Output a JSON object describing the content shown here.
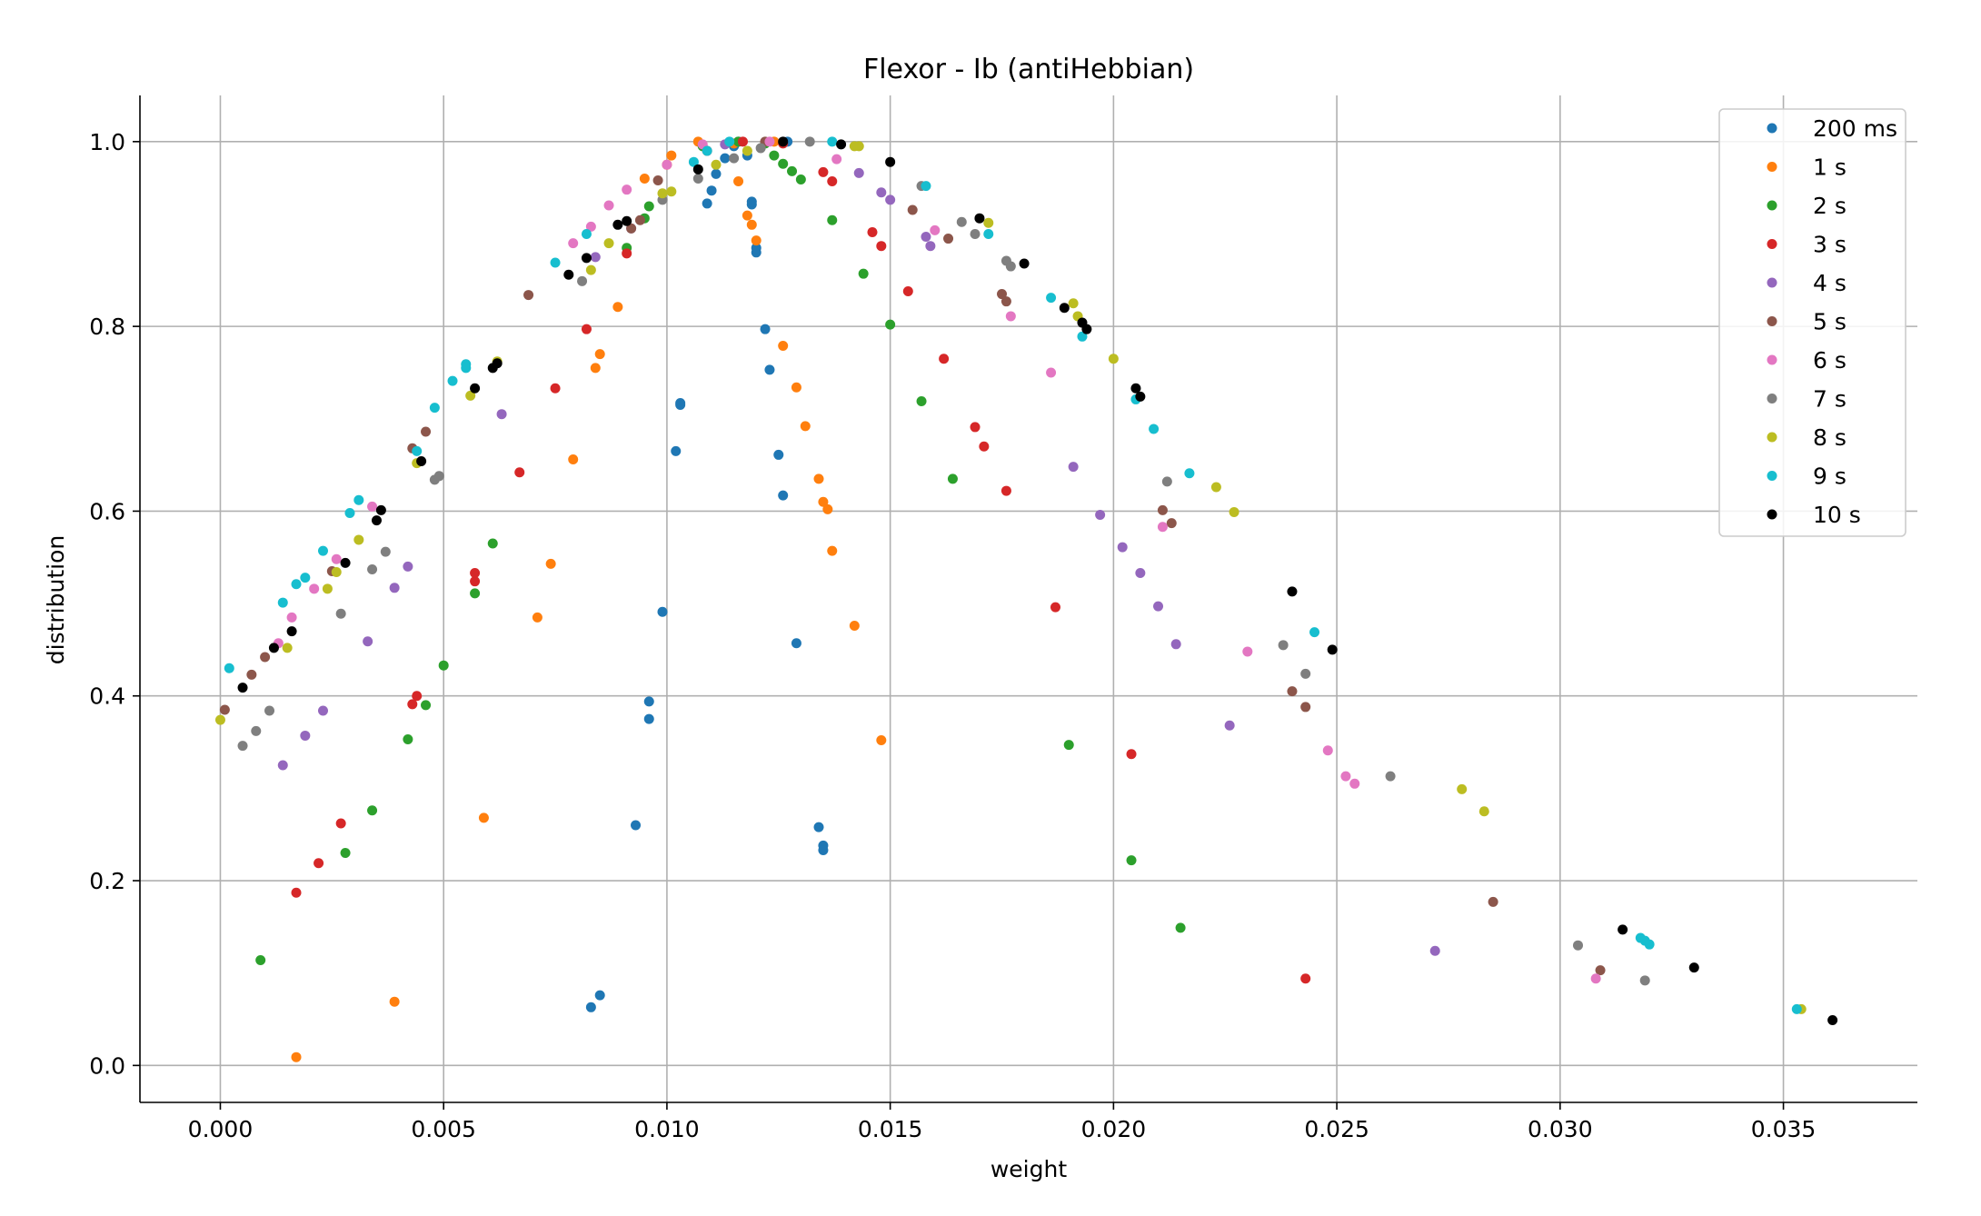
{
  "chart_data": {
    "type": "scatter",
    "title": "Flexor - Ib (antiHebbian)",
    "xlabel": "weight",
    "ylabel": "distribution",
    "xlim": [
      -0.0018,
      0.038
    ],
    "ylim": [
      -0.04,
      1.05
    ],
    "xticks": [
      0.0,
      0.005,
      0.01,
      0.015,
      0.02,
      0.025,
      0.03,
      0.035
    ],
    "xtick_labels": [
      "0.000",
      "0.005",
      "0.010",
      "0.015",
      "0.020",
      "0.025",
      "0.030",
      "0.035"
    ],
    "yticks": [
      0.0,
      0.2,
      0.4,
      0.6,
      0.8,
      1.0
    ],
    "ytick_labels": [
      "0.0",
      "0.2",
      "0.4",
      "0.6",
      "0.8",
      "1.0"
    ],
    "grid": true,
    "legend_position": "top-right",
    "series": [
      {
        "name": "200 ms",
        "color": "#1f77b4",
        "points": [
          [
            0.0083,
            0.063
          ],
          [
            0.0085,
            0.076
          ],
          [
            0.0093,
            0.26
          ],
          [
            0.0096,
            0.375
          ],
          [
            0.0096,
            0.394
          ],
          [
            0.0099,
            0.491
          ],
          [
            0.0102,
            0.665
          ],
          [
            0.0103,
            0.715
          ],
          [
            0.0103,
            0.717
          ],
          [
            0.0109,
            0.933
          ],
          [
            0.011,
            0.947
          ],
          [
            0.0111,
            0.965
          ],
          [
            0.0113,
            0.982
          ],
          [
            0.0115,
            0.995
          ],
          [
            0.0116,
            1.0
          ],
          [
            0.0119,
            0.932
          ],
          [
            0.0119,
            0.935
          ],
          [
            0.012,
            0.88
          ],
          [
            0.012,
            0.885
          ],
          [
            0.0122,
            0.797
          ],
          [
            0.0123,
            0.753
          ],
          [
            0.0125,
            0.661
          ],
          [
            0.0126,
            0.617
          ],
          [
            0.0129,
            0.457
          ],
          [
            0.0134,
            0.258
          ],
          [
            0.0135,
            0.238
          ],
          [
            0.0135,
            0.233
          ],
          [
            0.0118,
            0.985
          ],
          [
            0.0127,
            1.0
          ]
        ]
      },
      {
        "name": "1 s",
        "color": "#ff7f0e",
        "points": [
          [
            0.0017,
            0.009
          ],
          [
            0.0039,
            0.069
          ],
          [
            0.0059,
            0.268
          ],
          [
            0.0071,
            0.485
          ],
          [
            0.0074,
            0.543
          ],
          [
            0.0079,
            0.656
          ],
          [
            0.0084,
            0.755
          ],
          [
            0.0085,
            0.77
          ],
          [
            0.0089,
            0.821
          ],
          [
            0.0095,
            0.96
          ],
          [
            0.01,
            0.975
          ],
          [
            0.0101,
            0.985
          ],
          [
            0.0107,
            1.0
          ],
          [
            0.0116,
            0.957
          ],
          [
            0.0118,
            0.92
          ],
          [
            0.0119,
            0.91
          ],
          [
            0.012,
            0.893
          ],
          [
            0.0126,
            0.779
          ],
          [
            0.0129,
            0.734
          ],
          [
            0.0131,
            0.692
          ],
          [
            0.0134,
            0.635
          ],
          [
            0.0135,
            0.61
          ],
          [
            0.0136,
            0.602
          ],
          [
            0.0137,
            0.557
          ],
          [
            0.0142,
            0.476
          ],
          [
            0.0148,
            0.352
          ],
          [
            0.0115,
            0.998
          ],
          [
            0.0124,
            1.0
          ]
        ]
      },
      {
        "name": "2 s",
        "color": "#2ca02c",
        "points": [
          [
            0.0009,
            0.114
          ],
          [
            0.0028,
            0.23
          ],
          [
            0.0034,
            0.276
          ],
          [
            0.0042,
            0.353
          ],
          [
            0.0046,
            0.39
          ],
          [
            0.005,
            0.433
          ],
          [
            0.0057,
            0.511
          ],
          [
            0.0061,
            0.565
          ],
          [
            0.0091,
            0.885
          ],
          [
            0.0095,
            0.917
          ],
          [
            0.0096,
            0.93
          ],
          [
            0.0108,
            0.995
          ],
          [
            0.0124,
            0.985
          ],
          [
            0.0126,
            0.976
          ],
          [
            0.0128,
            0.968
          ],
          [
            0.013,
            0.959
          ],
          [
            0.0137,
            0.915
          ],
          [
            0.0144,
            0.857
          ],
          [
            0.015,
            0.802
          ],
          [
            0.0157,
            0.719
          ],
          [
            0.0164,
            0.635
          ],
          [
            0.019,
            0.347
          ],
          [
            0.0204,
            0.222
          ],
          [
            0.0215,
            0.149
          ],
          [
            0.0116,
            1.0
          ],
          [
            0.0122,
            0.998
          ]
        ]
      },
      {
        "name": "3 s",
        "color": "#d62728",
        "points": [
          [
            0.0017,
            0.187
          ],
          [
            0.0022,
            0.219
          ],
          [
            0.0027,
            0.262
          ],
          [
            0.0043,
            0.391
          ],
          [
            0.0044,
            0.4
          ],
          [
            0.0057,
            0.524
          ],
          [
            0.0057,
            0.533
          ],
          [
            0.0067,
            0.642
          ],
          [
            0.0075,
            0.733
          ],
          [
            0.0082,
            0.797
          ],
          [
            0.0091,
            0.879
          ],
          [
            0.0109,
            0.99
          ],
          [
            0.0117,
            1.0
          ],
          [
            0.0135,
            0.967
          ],
          [
            0.0137,
            0.957
          ],
          [
            0.0146,
            0.902
          ],
          [
            0.0148,
            0.887
          ],
          [
            0.0154,
            0.838
          ],
          [
            0.0162,
            0.765
          ],
          [
            0.0169,
            0.691
          ],
          [
            0.0171,
            0.67
          ],
          [
            0.0176,
            0.622
          ],
          [
            0.0187,
            0.496
          ],
          [
            0.0204,
            0.337
          ],
          [
            0.0243,
            0.094
          ],
          [
            0.0126,
            0.998
          ]
        ]
      },
      {
        "name": "4 s",
        "color": "#9467bd",
        "points": [
          [
            0.0014,
            0.325
          ],
          [
            0.0019,
            0.357
          ],
          [
            0.0023,
            0.384
          ],
          [
            0.0033,
            0.459
          ],
          [
            0.0039,
            0.517
          ],
          [
            0.0042,
            0.54
          ],
          [
            0.0063,
            0.705
          ],
          [
            0.0084,
            0.875
          ],
          [
            0.0092,
            0.906
          ],
          [
            0.0143,
            0.966
          ],
          [
            0.0148,
            0.945
          ],
          [
            0.015,
            0.937
          ],
          [
            0.0158,
            0.897
          ],
          [
            0.0159,
            0.887
          ],
          [
            0.0191,
            0.648
          ],
          [
            0.0197,
            0.596
          ],
          [
            0.0202,
            0.561
          ],
          [
            0.0206,
            0.533
          ],
          [
            0.021,
            0.497
          ],
          [
            0.0214,
            0.456
          ],
          [
            0.0226,
            0.368
          ],
          [
            0.0272,
            0.124
          ],
          [
            0.0113,
            0.997
          ]
        ]
      },
      {
        "name": "5 s",
        "color": "#8c564b",
        "points": [
          [
            0.0001,
            0.385
          ],
          [
            0.0007,
            0.423
          ],
          [
            0.001,
            0.442
          ],
          [
            0.0025,
            0.535
          ],
          [
            0.0043,
            0.668
          ],
          [
            0.0046,
            0.686
          ],
          [
            0.0069,
            0.834
          ],
          [
            0.0092,
            0.906
          ],
          [
            0.0094,
            0.915
          ],
          [
            0.0098,
            0.958
          ],
          [
            0.0155,
            0.926
          ],
          [
            0.0163,
            0.895
          ],
          [
            0.0175,
            0.835
          ],
          [
            0.0176,
            0.827
          ],
          [
            0.0211,
            0.601
          ],
          [
            0.0213,
            0.587
          ],
          [
            0.024,
            0.405
          ],
          [
            0.0243,
            0.388
          ],
          [
            0.0285,
            0.177
          ],
          [
            0.0309,
            0.103
          ],
          [
            0.0122,
            1.0
          ]
        ]
      },
      {
        "name": "6 s",
        "color": "#e377c2",
        "points": [
          [
            0.0013,
            0.457
          ],
          [
            0.0016,
            0.485
          ],
          [
            0.0021,
            0.516
          ],
          [
            0.0026,
            0.548
          ],
          [
            0.0034,
            0.605
          ],
          [
            0.0079,
            0.89
          ],
          [
            0.0083,
            0.908
          ],
          [
            0.0087,
            0.931
          ],
          [
            0.0091,
            0.948
          ],
          [
            0.01,
            0.975
          ],
          [
            0.0108,
            0.997
          ],
          [
            0.0138,
            0.981
          ],
          [
            0.016,
            0.904
          ],
          [
            0.0177,
            0.811
          ],
          [
            0.0186,
            0.75
          ],
          [
            0.0211,
            0.583
          ],
          [
            0.023,
            0.448
          ],
          [
            0.0248,
            0.341
          ],
          [
            0.0252,
            0.313
          ],
          [
            0.0254,
            0.305
          ],
          [
            0.0308,
            0.094
          ],
          [
            0.0123,
            1.0
          ]
        ]
      },
      {
        "name": "7 s",
        "color": "#7f7f7f",
        "points": [
          [
            0.0005,
            0.346
          ],
          [
            0.0008,
            0.362
          ],
          [
            0.0011,
            0.384
          ],
          [
            0.0027,
            0.489
          ],
          [
            0.0034,
            0.537
          ],
          [
            0.0037,
            0.556
          ],
          [
            0.0048,
            0.634
          ],
          [
            0.0049,
            0.638
          ],
          [
            0.0081,
            0.849
          ],
          [
            0.0099,
            0.937
          ],
          [
            0.0107,
            0.96
          ],
          [
            0.0115,
            0.982
          ],
          [
            0.0121,
            0.993
          ],
          [
            0.0132,
            1.0
          ],
          [
            0.0157,
            0.952
          ],
          [
            0.0166,
            0.913
          ],
          [
            0.0169,
            0.9
          ],
          [
            0.0176,
            0.871
          ],
          [
            0.0177,
            0.865
          ],
          [
            0.0212,
            0.632
          ],
          [
            0.0238,
            0.455
          ],
          [
            0.0243,
            0.424
          ],
          [
            0.0262,
            0.313
          ],
          [
            0.0304,
            0.13
          ],
          [
            0.0319,
            0.092
          ]
        ]
      },
      {
        "name": "8 s",
        "color": "#bcbd22",
        "points": [
          [
            0.0,
            0.374
          ],
          [
            0.0015,
            0.452
          ],
          [
            0.0024,
            0.516
          ],
          [
            0.0026,
            0.534
          ],
          [
            0.0031,
            0.569
          ],
          [
            0.0044,
            0.652
          ],
          [
            0.0056,
            0.725
          ],
          [
            0.0062,
            0.762
          ],
          [
            0.0083,
            0.861
          ],
          [
            0.0087,
            0.89
          ],
          [
            0.0099,
            0.944
          ],
          [
            0.0101,
            0.946
          ],
          [
            0.0111,
            0.975
          ],
          [
            0.0142,
            0.995
          ],
          [
            0.0143,
            0.995
          ],
          [
            0.0172,
            0.912
          ],
          [
            0.0191,
            0.825
          ],
          [
            0.0192,
            0.811
          ],
          [
            0.02,
            0.765
          ],
          [
            0.0223,
            0.626
          ],
          [
            0.0227,
            0.599
          ],
          [
            0.0278,
            0.299
          ],
          [
            0.0283,
            0.275
          ],
          [
            0.0354,
            0.061
          ],
          [
            0.0118,
            0.99
          ]
        ]
      },
      {
        "name": "9 s",
        "color": "#17becf",
        "points": [
          [
            0.0002,
            0.43
          ],
          [
            0.0014,
            0.501
          ],
          [
            0.0017,
            0.521
          ],
          [
            0.0019,
            0.528
          ],
          [
            0.0023,
            0.557
          ],
          [
            0.0029,
            0.598
          ],
          [
            0.0031,
            0.612
          ],
          [
            0.0044,
            0.665
          ],
          [
            0.0048,
            0.712
          ],
          [
            0.0052,
            0.741
          ],
          [
            0.0055,
            0.755
          ],
          [
            0.0055,
            0.759
          ],
          [
            0.0075,
            0.869
          ],
          [
            0.0082,
            0.9
          ],
          [
            0.0106,
            0.978
          ],
          [
            0.0109,
            0.99
          ],
          [
            0.0114,
            1.0
          ],
          [
            0.0137,
            1.0
          ],
          [
            0.0158,
            0.952
          ],
          [
            0.0172,
            0.9
          ],
          [
            0.0186,
            0.831
          ],
          [
            0.0193,
            0.789
          ],
          [
            0.0205,
            0.721
          ],
          [
            0.0209,
            0.689
          ],
          [
            0.0217,
            0.641
          ],
          [
            0.0245,
            0.469
          ],
          [
            0.0318,
            0.138
          ],
          [
            0.0319,
            0.135
          ],
          [
            0.032,
            0.131
          ],
          [
            0.0353,
            0.061
          ]
        ]
      },
      {
        "name": "10 s",
        "color": "#000000",
        "points": [
          [
            0.0005,
            0.409
          ],
          [
            0.0012,
            0.452
          ],
          [
            0.0016,
            0.47
          ],
          [
            0.0028,
            0.544
          ],
          [
            0.0035,
            0.59
          ],
          [
            0.0036,
            0.601
          ],
          [
            0.0045,
            0.654
          ],
          [
            0.0057,
            0.733
          ],
          [
            0.0061,
            0.755
          ],
          [
            0.0062,
            0.76
          ],
          [
            0.0078,
            0.856
          ],
          [
            0.0082,
            0.874
          ],
          [
            0.0089,
            0.91
          ],
          [
            0.0091,
            0.914
          ],
          [
            0.0107,
            0.97
          ],
          [
            0.0126,
            1.0
          ],
          [
            0.0139,
            0.997
          ],
          [
            0.015,
            0.978
          ],
          [
            0.017,
            0.917
          ],
          [
            0.018,
            0.868
          ],
          [
            0.0189,
            0.82
          ],
          [
            0.0193,
            0.804
          ],
          [
            0.0194,
            0.797
          ],
          [
            0.0205,
            0.733
          ],
          [
            0.0206,
            0.724
          ],
          [
            0.024,
            0.513
          ],
          [
            0.0249,
            0.45
          ],
          [
            0.0314,
            0.147
          ],
          [
            0.033,
            0.106
          ],
          [
            0.0361,
            0.049
          ]
        ]
      }
    ]
  }
}
